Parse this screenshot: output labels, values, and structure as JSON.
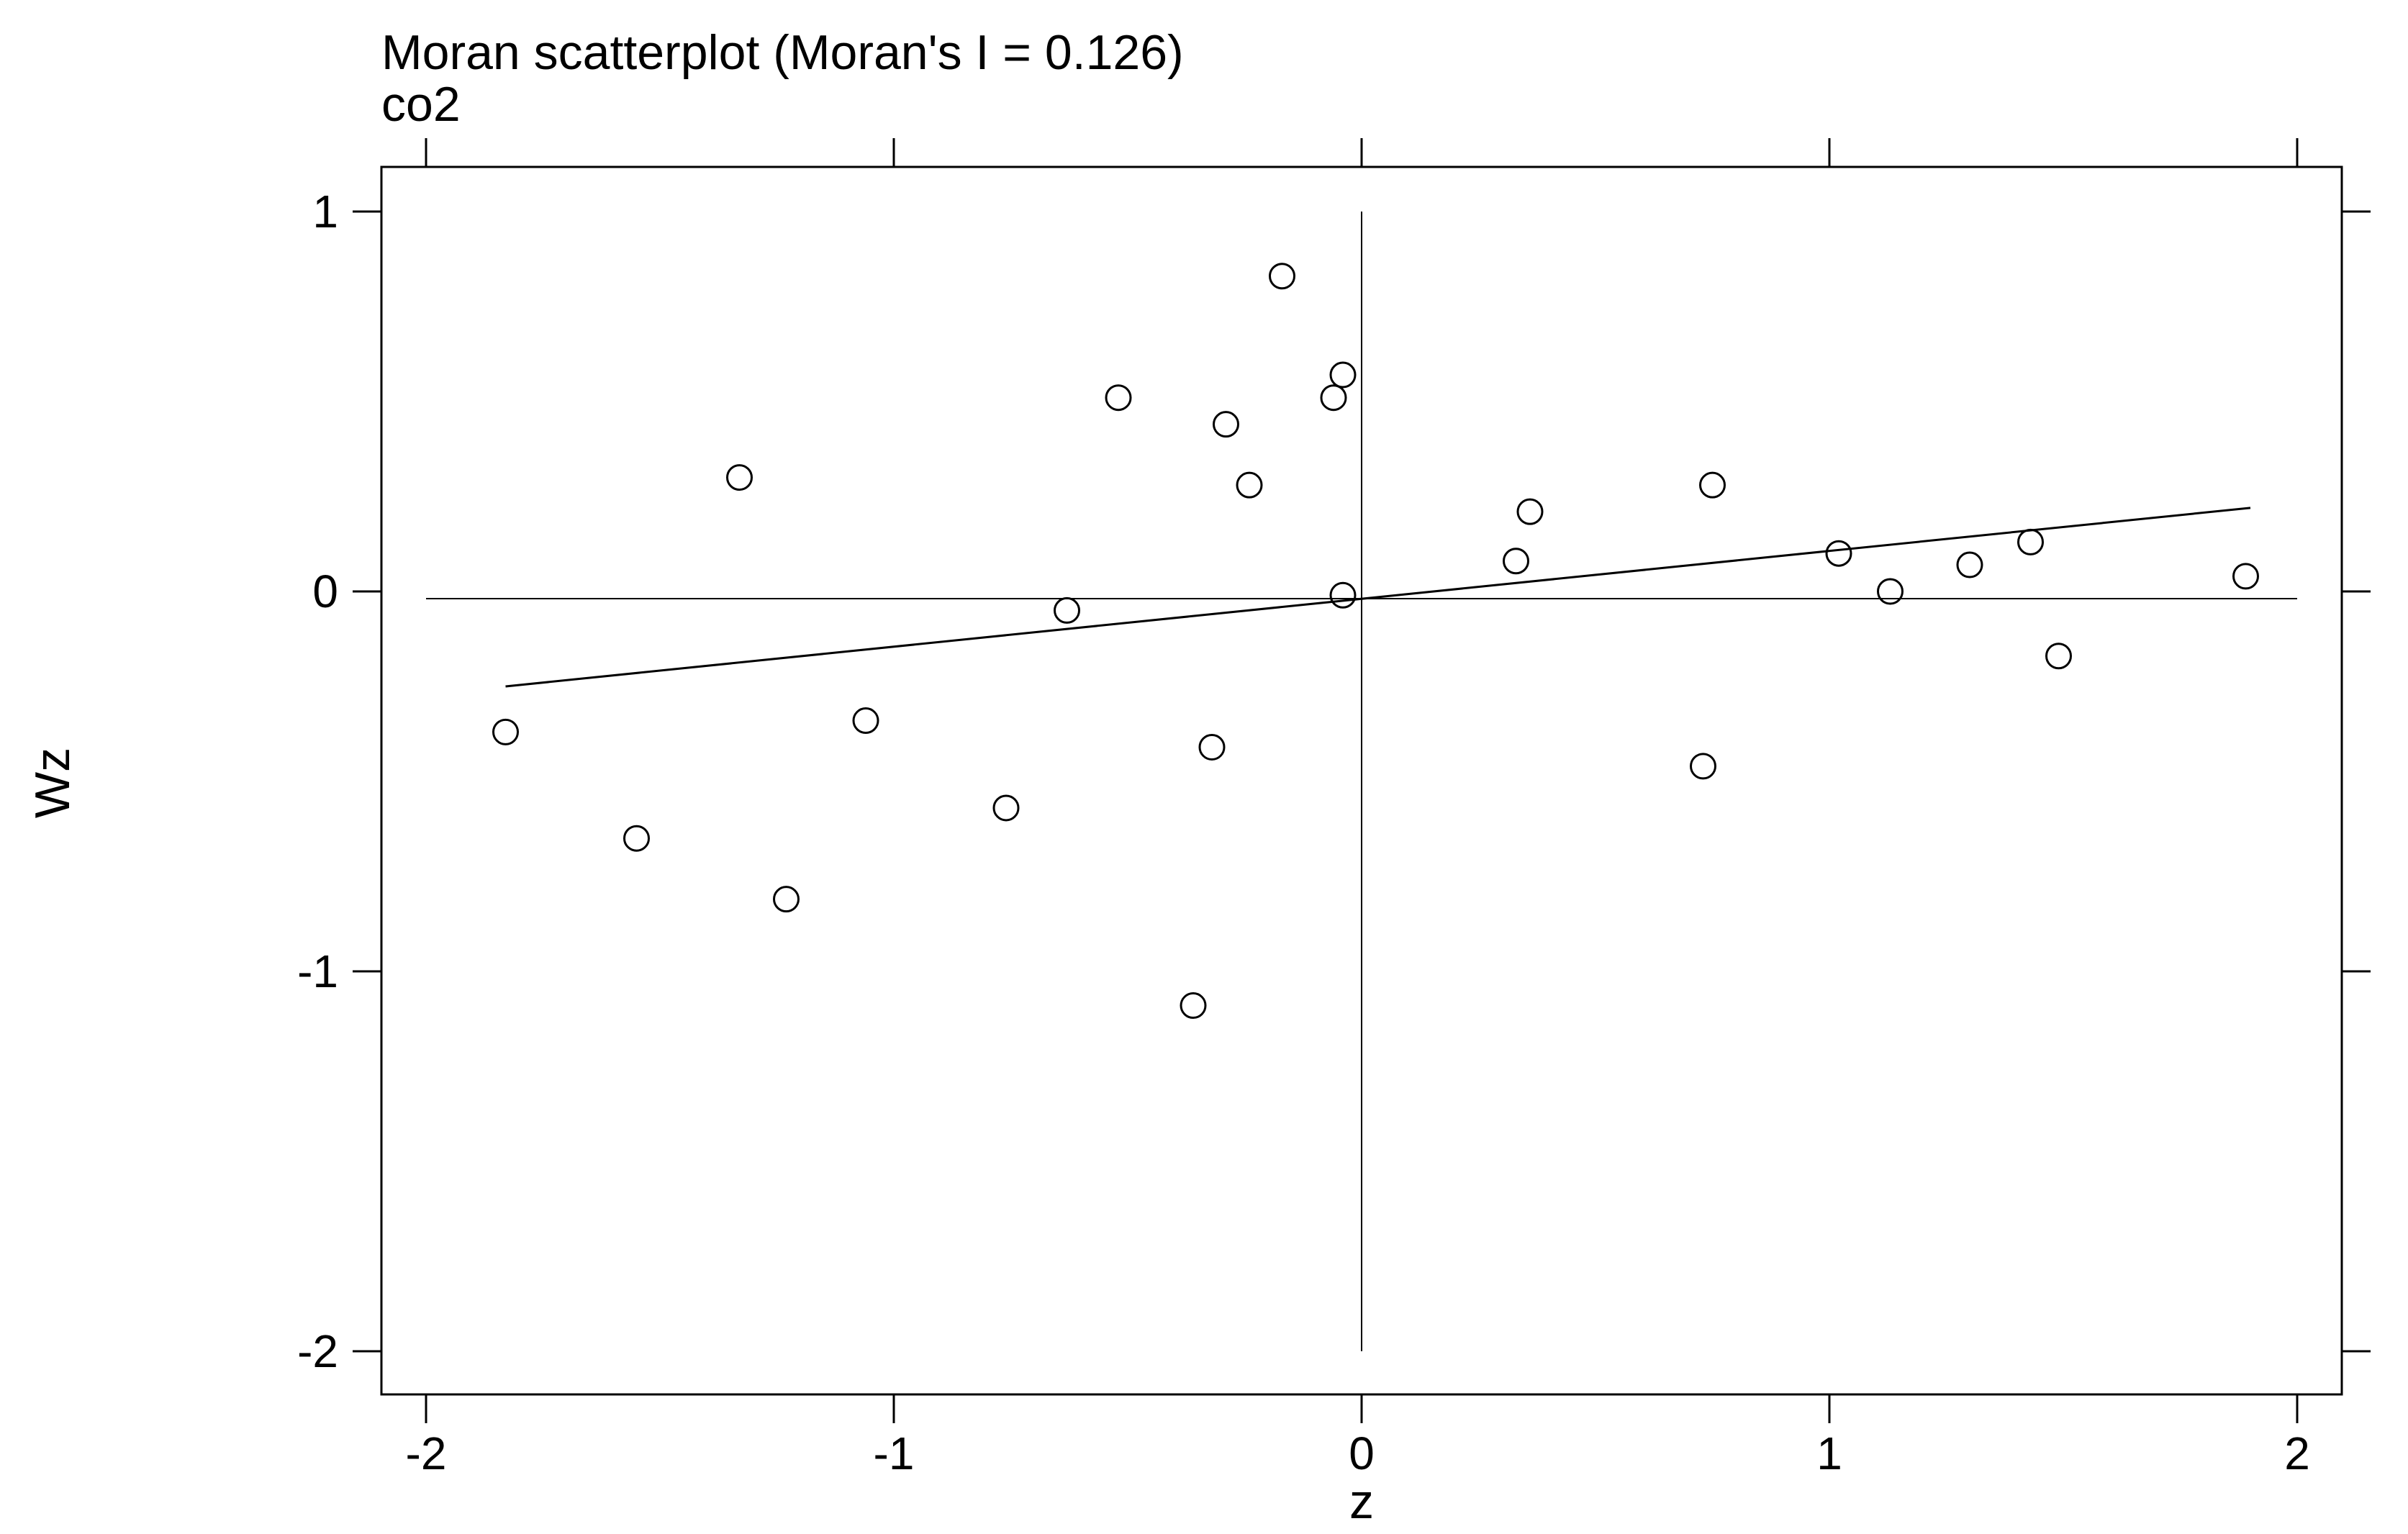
{
  "chart_data": {
    "type": "scatter",
    "title": "Moran scatterplot (Moran's I = 0.126)",
    "subtitle": "co2",
    "xlabel": "z",
    "ylabel": "Wz",
    "xlim": [
      -2.1,
      2.1
    ],
    "ylim": [
      -2.1,
      1.1
    ],
    "x_ticks": [
      -2,
      -1,
      0,
      1,
      2
    ],
    "x_tick_labels": [
      "-2",
      "-1",
      "0",
      "1",
      "2"
    ],
    "y_ticks": [
      -2,
      -1,
      0,
      1
    ],
    "y_tick_labels": [
      "-2",
      "-1",
      "0",
      "1"
    ],
    "grid": false,
    "reference_lines": {
      "vertical_x": 0,
      "horizontal_y": 0
    },
    "regression_line": {
      "x": [
        -1.83,
        1.9
      ],
      "y": [
        -0.25,
        0.22
      ]
    },
    "points": [
      {
        "x": -1.83,
        "y": -0.37
      },
      {
        "x": -1.55,
        "y": -0.65
      },
      {
        "x": -1.33,
        "y": 0.3
      },
      {
        "x": -1.23,
        "y": -0.81
      },
      {
        "x": -1.06,
        "y": -0.34
      },
      {
        "x": -0.76,
        "y": -0.57
      },
      {
        "x": -0.63,
        "y": -0.05
      },
      {
        "x": -0.52,
        "y": 0.51
      },
      {
        "x": -0.36,
        "y": -1.09
      },
      {
        "x": -0.32,
        "y": -0.41
      },
      {
        "x": -0.29,
        "y": 0.44
      },
      {
        "x": -0.24,
        "y": 0.28
      },
      {
        "x": -0.17,
        "y": 0.83
      },
      {
        "x": -0.06,
        "y": 0.51
      },
      {
        "x": -0.04,
        "y": 0.57
      },
      {
        "x": -0.04,
        "y": -0.01
      },
      {
        "x": 0.33,
        "y": 0.08
      },
      {
        "x": 0.36,
        "y": 0.21
      },
      {
        "x": 0.73,
        "y": -0.46
      },
      {
        "x": 0.75,
        "y": 0.28
      },
      {
        "x": 1.02,
        "y": 0.1
      },
      {
        "x": 1.13,
        "y": 0.0
      },
      {
        "x": 1.3,
        "y": 0.07
      },
      {
        "x": 1.43,
        "y": 0.13
      },
      {
        "x": 1.49,
        "y": -0.17
      },
      {
        "x": 1.89,
        "y": 0.04
      }
    ]
  },
  "colors": {
    "ink": "#000000",
    "background": "#ffffff"
  }
}
